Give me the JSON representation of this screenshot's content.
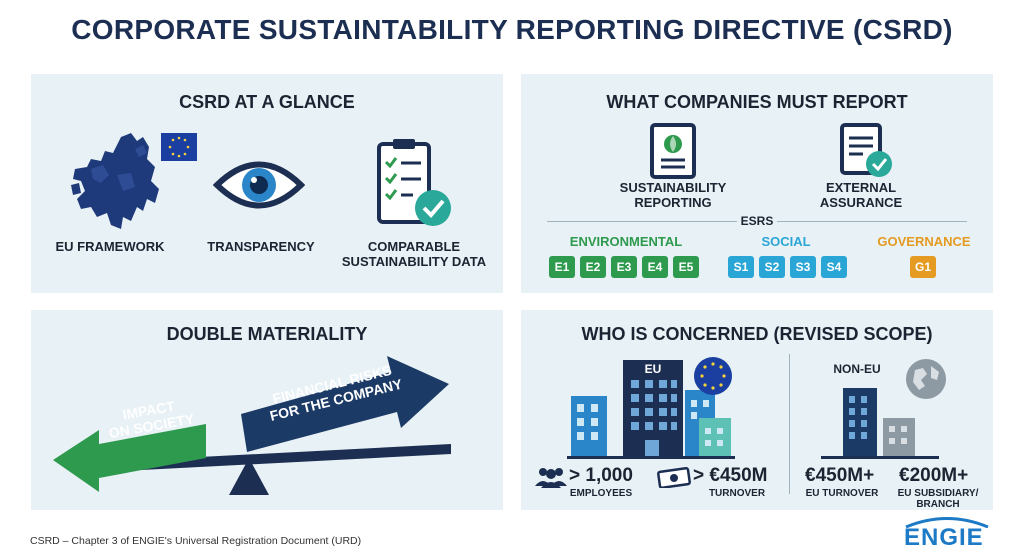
{
  "title": "CORPORATE SUSTAINTABILITY REPORTING DIRECTIVE (CSRD)",
  "glance": {
    "title": "CSRD AT A GLANCE",
    "items": [
      {
        "label": "EU FRAMEWORK",
        "icon": "eu-map-icon"
      },
      {
        "label": "TRANSPARENCY",
        "icon": "eye-icon"
      },
      {
        "label_line1": "COMPARABLE",
        "label_line2": "SUSTAINABILITY DATA",
        "icon": "clipboard-check-icon"
      }
    ]
  },
  "report": {
    "title": "WHAT COMPANIES MUST REPORT",
    "sustainability_line1": "SUSTAINABILITY",
    "sustainability_line2": "REPORTING",
    "assurance_line1": "EXTERNAL",
    "assurance_line2": "ASSURANCE",
    "esrs": "ESRS",
    "environmental": {
      "label": "ENVIRONMENTAL",
      "color": "#2e9a4e",
      "codes": [
        "E1",
        "E2",
        "E3",
        "E4",
        "E5"
      ]
    },
    "social": {
      "label": "SOCIAL",
      "color": "#2aa6d6",
      "codes": [
        "S1",
        "S2",
        "S3",
        "S4"
      ]
    },
    "governance": {
      "label": "GOVERNANCE",
      "color": "#e59a22",
      "codes": [
        "G1"
      ]
    }
  },
  "materiality": {
    "title": "DOUBLE MATERIALITY",
    "impact_line1": "IMPACT",
    "impact_line2": "ON SOCIETY",
    "financial_line1": "FINANCIAL RISKS",
    "financial_line2": "FOR THE COMPANY"
  },
  "scope": {
    "title": "WHO IS CONCERNED (REVISED SCOPE)",
    "eu_tag": "EU",
    "non_eu_tag": "NON-EU",
    "employees_value": "> 1,000",
    "employees_label": "EMPLOYEES",
    "turnover_value": "> €450M",
    "turnover_label": "TURNOVER",
    "eu_turnover_value": "€450M+",
    "eu_turnover_label": "EU TURNOVER",
    "subsidiary_value": "€200M+",
    "subsidiary_label_line1": "EU SUBSIDIARY/",
    "subsidiary_label_line2": "BRANCH"
  },
  "footer": "CSRD – Chapter 3 of ENGIE's Universal Registration Document (URD)",
  "logo": "ENGIE"
}
